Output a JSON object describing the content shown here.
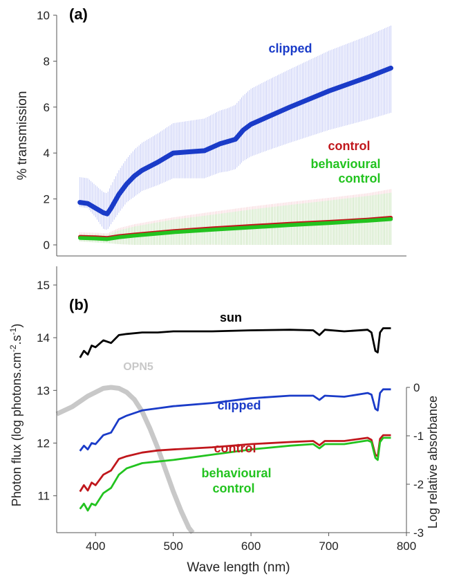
{
  "chart_data": [
    {
      "type": "line",
      "panel_label": "(a)",
      "ylabel": "% transmission",
      "xlim": [
        380,
        780
      ],
      "ylim": [
        0,
        10
      ],
      "yticks": [
        0,
        2,
        4,
        6,
        8,
        10
      ],
      "series": [
        {
          "name": "clipped",
          "color": "#1a3bc8",
          "band_color": "#9fa8f0",
          "x": [
            380,
            390,
            400,
            410,
            415,
            420,
            430,
            440,
            450,
            460,
            480,
            500,
            520,
            540,
            560,
            570,
            580,
            590,
            600,
            620,
            650,
            700,
            750,
            780
          ],
          "y": [
            1.85,
            1.8,
            1.6,
            1.4,
            1.35,
            1.6,
            2.2,
            2.65,
            3.0,
            3.25,
            3.6,
            4.0,
            4.05,
            4.1,
            4.4,
            4.5,
            4.6,
            5.0,
            5.25,
            5.55,
            6.0,
            6.7,
            7.3,
            7.7
          ],
          "err_low": [
            0.2,
            0.2,
            0.4,
            0.7,
            0.7,
            0.7,
            0.8,
            0.8,
            0.9,
            0.9,
            1.0,
            1.1,
            1.15,
            1.2,
            1.25,
            1.3,
            1.3,
            1.35,
            1.4,
            1.45,
            1.55,
            1.7,
            1.85,
            1.95
          ],
          "err_high": [
            1.1,
            1.1,
            1.0,
            0.9,
            0.9,
            1.0,
            1.05,
            1.1,
            1.15,
            1.2,
            1.25,
            1.3,
            1.35,
            1.4,
            1.45,
            1.45,
            1.5,
            1.5,
            1.55,
            1.6,
            1.65,
            1.75,
            1.8,
            1.85
          ]
        },
        {
          "name": "control",
          "color": "#c0171c",
          "band_color": "#f2b8bd",
          "x": [
            380,
            400,
            415,
            430,
            450,
            500,
            550,
            600,
            650,
            700,
            750,
            780
          ],
          "y": [
            0.35,
            0.33,
            0.3,
            0.38,
            0.45,
            0.6,
            0.72,
            0.82,
            0.92,
            1.0,
            1.1,
            1.18
          ],
          "err": [
            0.2,
            0.2,
            0.2,
            0.35,
            0.45,
            0.6,
            0.72,
            0.85,
            0.95,
            1.05,
            1.15,
            1.25
          ]
        },
        {
          "name": "behavioural control",
          "name_lines": [
            "behavioural",
            "control"
          ],
          "color": "#22c31f",
          "band_color": "#a8eda6",
          "x": [
            380,
            400,
            415,
            430,
            450,
            500,
            550,
            600,
            650,
            700,
            750,
            780
          ],
          "y": [
            0.3,
            0.28,
            0.25,
            0.33,
            0.4,
            0.55,
            0.66,
            0.76,
            0.86,
            0.95,
            1.05,
            1.12
          ],
          "err": [
            0.15,
            0.18,
            0.18,
            0.3,
            0.4,
            0.55,
            0.65,
            0.78,
            0.88,
            0.98,
            1.08,
            1.15
          ]
        }
      ]
    },
    {
      "type": "line",
      "panel_label": "(b)",
      "xlabel": "Wave length (nm)",
      "ylabel": "Photon flux (log photons.cm",
      "ylabel_sup1": "-2",
      "ylabel_mid": ".s",
      "ylabel_sup2": "-1",
      "ylabel_end": ")",
      "y2label": "Log relative absorbance",
      "xlim": [
        350,
        800
      ],
      "xticks": [
        400,
        500,
        600,
        700,
        800
      ],
      "ylim": [
        10.3,
        15
      ],
      "yticks": [
        11,
        12,
        13,
        14,
        15
      ],
      "y2lim": [
        -3,
        0
      ],
      "y2ticks": [
        -3,
        -2,
        -1,
        0
      ],
      "series": [
        {
          "name": "sun",
          "color": "#000000",
          "x": [
            380,
            385,
            390,
            395,
            400,
            410,
            420,
            430,
            440,
            460,
            480,
            500,
            550,
            600,
            650,
            680,
            688,
            695,
            720,
            750,
            755,
            760,
            763,
            766,
            770,
            780
          ],
          "y": [
            13.62,
            13.75,
            13.68,
            13.85,
            13.82,
            13.95,
            13.9,
            14.05,
            14.07,
            14.1,
            14.1,
            14.12,
            14.12,
            14.14,
            14.15,
            14.14,
            14.05,
            14.15,
            14.12,
            14.15,
            14.1,
            13.75,
            13.72,
            14.1,
            14.18,
            14.18
          ]
        },
        {
          "name": "clipped",
          "color": "#1a3bc8",
          "x": [
            380,
            385,
            390,
            395,
            400,
            410,
            420,
            430,
            440,
            460,
            480,
            500,
            550,
            600,
            650,
            680,
            688,
            695,
            720,
            750,
            755,
            760,
            763,
            766,
            770,
            780
          ],
          "y": [
            11.85,
            11.95,
            11.88,
            12.0,
            11.98,
            12.15,
            12.2,
            12.45,
            12.52,
            12.62,
            12.66,
            12.7,
            12.76,
            12.85,
            12.9,
            12.9,
            12.82,
            12.9,
            12.88,
            12.95,
            12.92,
            12.65,
            12.62,
            12.95,
            13.02,
            13.02
          ]
        },
        {
          "name": "control",
          "color": "#c0171c",
          "x": [
            380,
            385,
            390,
            395,
            400,
            410,
            420,
            430,
            440,
            460,
            480,
            500,
            550,
            600,
            650,
            680,
            688,
            695,
            720,
            750,
            755,
            760,
            763,
            766,
            770,
            780
          ],
          "y": [
            11.08,
            11.2,
            11.1,
            11.25,
            11.2,
            11.4,
            11.48,
            11.7,
            11.75,
            11.82,
            11.86,
            11.88,
            11.92,
            11.98,
            12.02,
            12.04,
            11.96,
            12.04,
            12.04,
            12.1,
            12.06,
            11.78,
            11.75,
            12.08,
            12.15,
            12.15
          ]
        },
        {
          "name": "behavioural control",
          "name_lines": [
            "behavioural",
            "control"
          ],
          "color": "#22c31f",
          "x": [
            380,
            385,
            390,
            395,
            400,
            410,
            420,
            430,
            440,
            460,
            480,
            500,
            550,
            600,
            650,
            680,
            688,
            695,
            720,
            750,
            755,
            760,
            763,
            766,
            770,
            780
          ],
          "y": [
            10.75,
            10.85,
            10.72,
            10.85,
            10.82,
            11.05,
            11.15,
            11.4,
            11.52,
            11.62,
            11.65,
            11.68,
            11.78,
            11.88,
            11.95,
            11.98,
            11.9,
            11.98,
            11.98,
            12.05,
            12.02,
            11.72,
            11.68,
            12.02,
            12.1,
            12.1
          ]
        },
        {
          "name": "OPN5",
          "color": "#c8c8c8",
          "axis": "y2",
          "x": [
            350,
            370,
            390,
            410,
            420,
            430,
            440,
            450,
            460,
            470,
            480,
            490,
            500,
            510,
            520,
            525
          ],
          "y": [
            -0.55,
            -0.4,
            -0.18,
            -0.02,
            0.0,
            -0.02,
            -0.1,
            -0.25,
            -0.5,
            -0.85,
            -1.25,
            -1.7,
            -2.15,
            -2.55,
            -2.9,
            -3.0
          ]
        }
      ]
    }
  ]
}
